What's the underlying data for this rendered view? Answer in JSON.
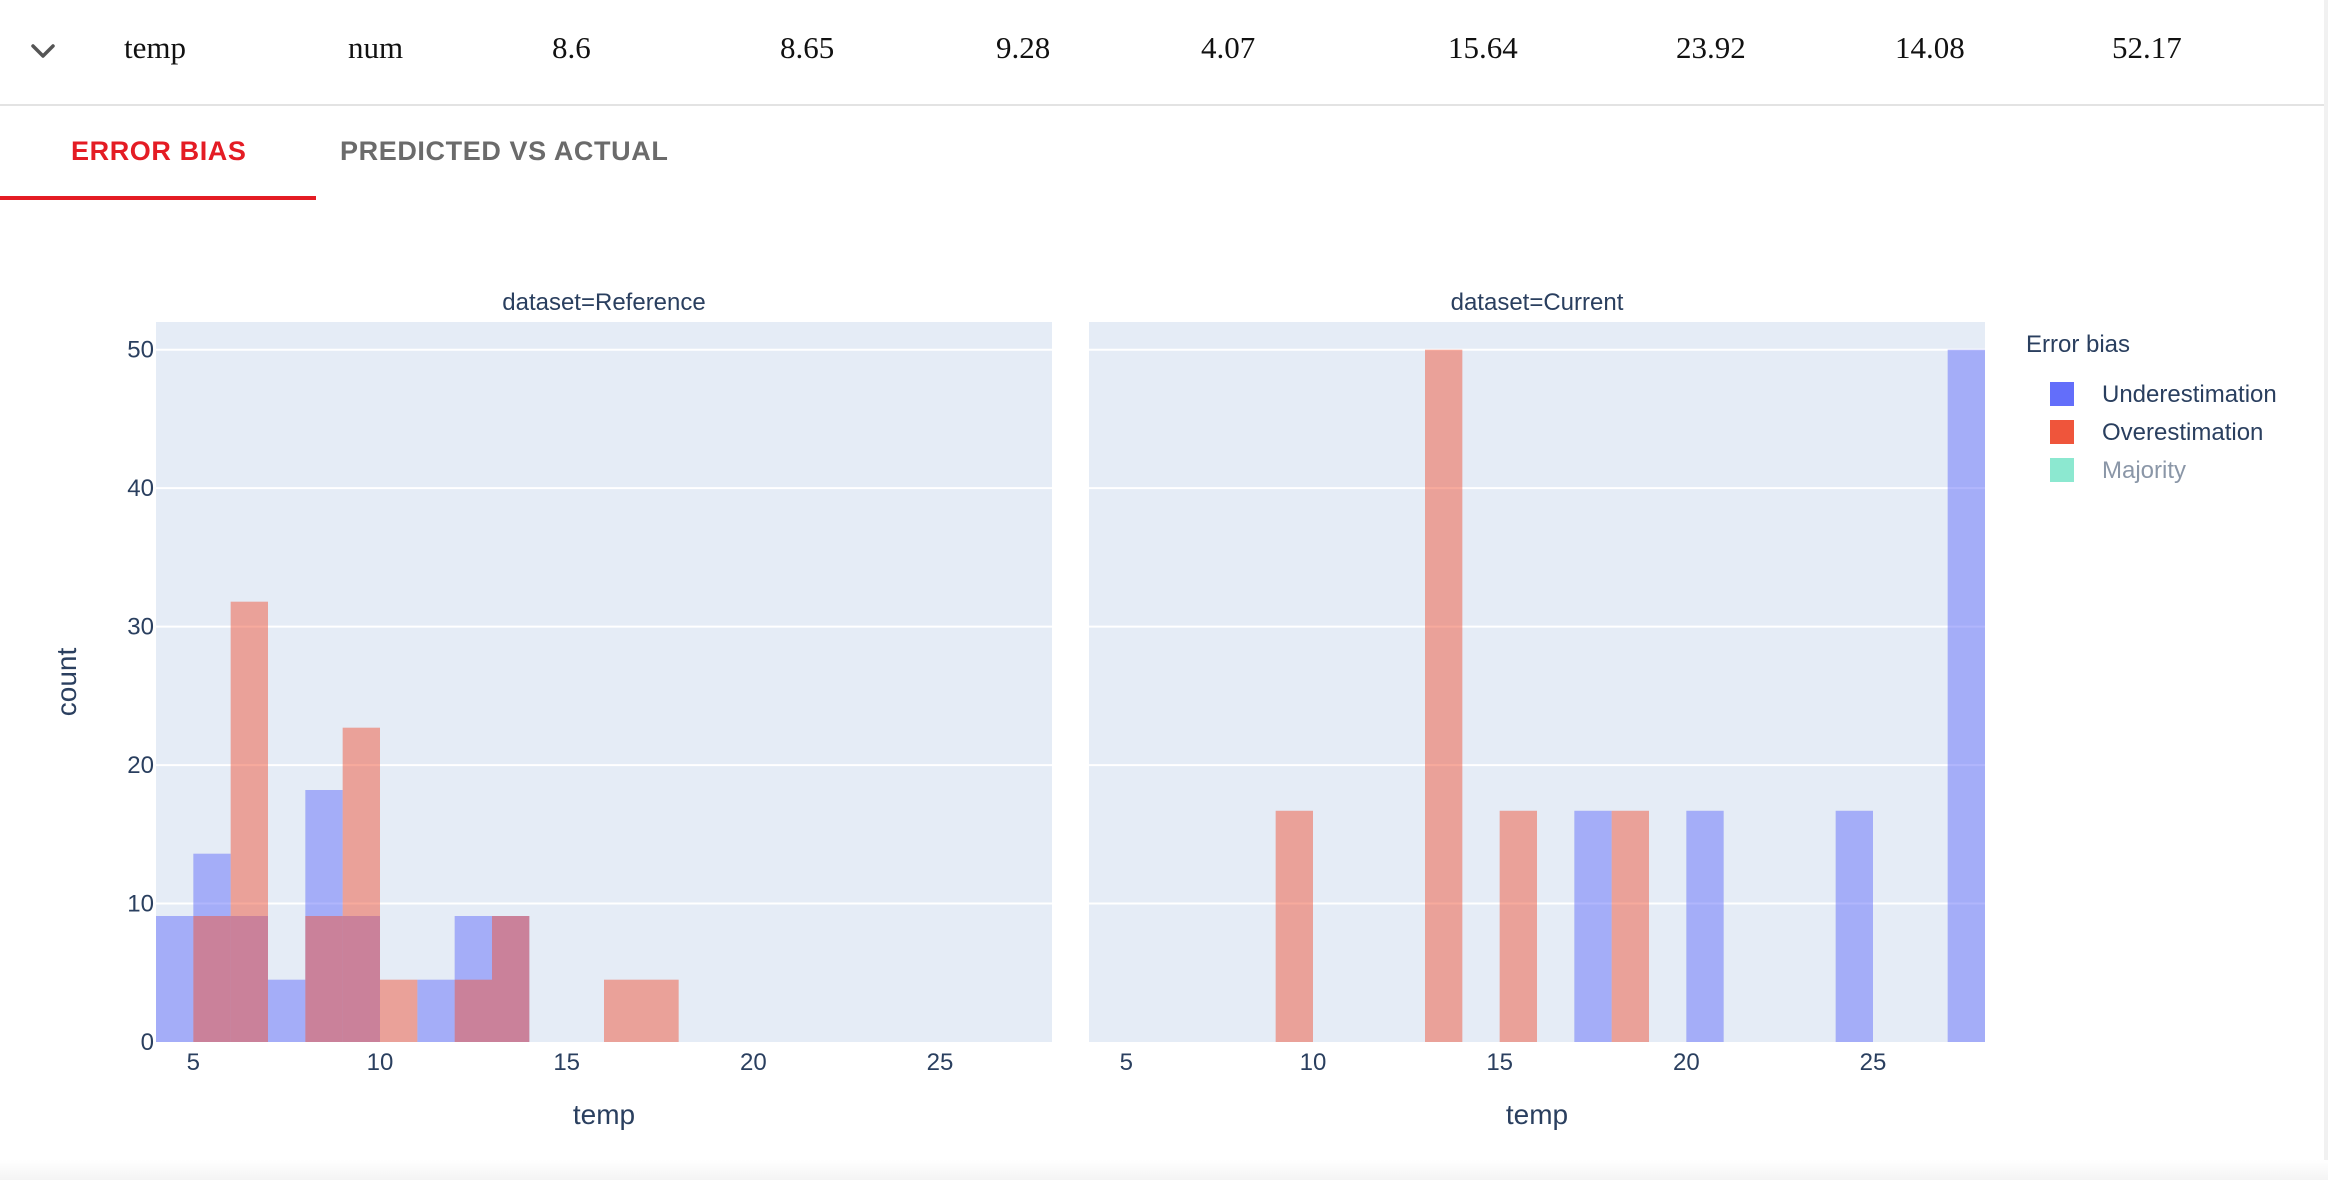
{
  "feature_row": {
    "name": "temp",
    "type": "num",
    "values": [
      "8.6",
      "8.65",
      "9.28",
      "4.07",
      "15.64",
      "23.92",
      "14.08",
      "52.17"
    ]
  },
  "tabs": [
    {
      "label": "ERROR BIAS",
      "active": true
    },
    {
      "label": "PREDICTED VS ACTUAL",
      "active": false
    }
  ],
  "chart_data": {
    "type": "bar",
    "ylabel": "count",
    "xlabel": "temp",
    "ylim": [
      0,
      52
    ],
    "yticks": [
      0,
      10,
      20,
      30,
      40,
      50
    ],
    "xticks": [
      5,
      10,
      15,
      20,
      25
    ],
    "grid": true,
    "legend": {
      "title": "Error bias",
      "placement": "right",
      "entries": [
        {
          "name": "Underestimation",
          "color": "#636efa",
          "hidden": false
        },
        {
          "name": "Overestimation",
          "color": "#ef553b",
          "hidden": false
        },
        {
          "name": "Majority",
          "color": "#00cc96",
          "hidden": true
        }
      ]
    },
    "panels": [
      {
        "title": "dataset=Reference",
        "xlim": [
          4,
          28
        ],
        "series": [
          {
            "name": "Underestimation",
            "color": "#636efa",
            "bars": [
              [
                4,
                5,
                9.1
              ],
              [
                5,
                6,
                13.6
              ],
              [
                6,
                7,
                9.1
              ],
              [
                7,
                8,
                4.5
              ],
              [
                8,
                9,
                18.2
              ],
              [
                9,
                10,
                9.1
              ],
              [
                11,
                12,
                4.5
              ],
              [
                12,
                13,
                9.1
              ],
              [
                13,
                14,
                9.1
              ]
            ]
          },
          {
            "name": "Overestimation",
            "color": "#ef553b",
            "bars": [
              [
                5,
                6,
                9.1
              ],
              [
                6,
                7,
                31.8
              ],
              [
                8,
                9,
                9.1
              ],
              [
                9,
                10,
                22.7
              ],
              [
                10,
                11,
                4.5
              ],
              [
                12,
                13,
                4.5
              ],
              [
                13,
                14,
                9.1
              ],
              [
                16,
                18,
                4.5
              ]
            ]
          }
        ]
      },
      {
        "title": "dataset=Current",
        "xlim": [
          4,
          28
        ],
        "series": [
          {
            "name": "Underestimation",
            "color": "#636efa",
            "bars": [
              [
                17,
                18,
                16.7
              ],
              [
                20,
                21,
                16.7
              ],
              [
                24,
                25,
                16.7
              ],
              [
                27,
                28,
                50
              ]
            ]
          },
          {
            "name": "Overestimation",
            "color": "#ef553b",
            "bars": [
              [
                9,
                10,
                16.7
              ],
              [
                13,
                14,
                50
              ],
              [
                15,
                16,
                16.7
              ],
              [
                18,
                19,
                16.7
              ]
            ]
          }
        ]
      }
    ]
  }
}
